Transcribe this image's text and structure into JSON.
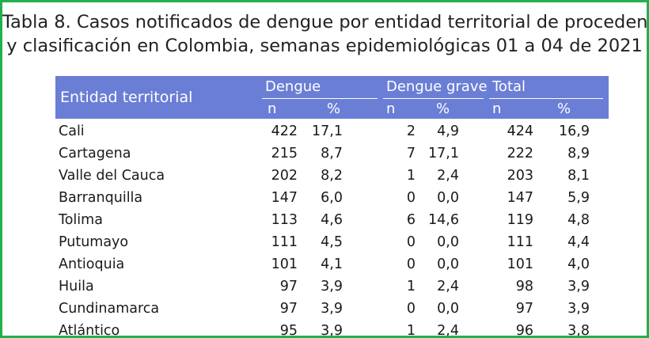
{
  "title": {
    "line1": "Tabla 8. Casos notificados de dengue por entidad territorial de procedencia",
    "line2": "y clasificación en Colombia, semanas epidemiológicas 01 a 04 de 2021"
  },
  "table": {
    "headers": {
      "entidad": "Entidad territorial",
      "dengue": "Dengue",
      "dengue_grave": "Dengue grave",
      "total": "Total",
      "n": "n",
      "pct": "%"
    },
    "rows": [
      {
        "entidad": "Cali",
        "dn": "422",
        "dp": "17,1",
        "gn": "2",
        "gp": "4,9",
        "tn": "424",
        "tp": "16,9"
      },
      {
        "entidad": "Cartagena",
        "dn": "215",
        "dp": "8,7",
        "gn": "7",
        "gp": "17,1",
        "tn": "222",
        "tp": "8,9"
      },
      {
        "entidad": "Valle del Cauca",
        "dn": "202",
        "dp": "8,2",
        "gn": "1",
        "gp": "2,4",
        "tn": "203",
        "tp": "8,1"
      },
      {
        "entidad": "Barranquilla",
        "dn": "147",
        "dp": "6,0",
        "gn": "0",
        "gp": "0,0",
        "tn": "147",
        "tp": "5,9"
      },
      {
        "entidad": "Tolima",
        "dn": "113",
        "dp": "4,6",
        "gn": "6",
        "gp": "14,6",
        "tn": "119",
        "tp": "4,8"
      },
      {
        "entidad": "Putumayo",
        "dn": "111",
        "dp": "4,5",
        "gn": "0",
        "gp": "0,0",
        "tn": "111",
        "tp": "4,4"
      },
      {
        "entidad": "Antioquia",
        "dn": "101",
        "dp": "4,1",
        "gn": "0",
        "gp": "0,0",
        "tn": "101",
        "tp": "4,0"
      },
      {
        "entidad": "Huila",
        "dn": "97",
        "dp": "3,9",
        "gn": "1",
        "gp": "2,4",
        "tn": "98",
        "tp": "3,9"
      },
      {
        "entidad": "Cundinamarca",
        "dn": "97",
        "dp": "3,9",
        "gn": "0",
        "gp": "0,0",
        "tn": "97",
        "tp": "3,9"
      },
      {
        "entidad": "Atlántico",
        "dn": "95",
        "dp": "3,9",
        "gn": "1",
        "gp": "2,4",
        "tn": "96",
        "tp": "3,8"
      }
    ]
  },
  "colors": {
    "frame_border": "#22b04b",
    "header_bg": "#6a7ed6",
    "header_text": "#ffffff"
  }
}
